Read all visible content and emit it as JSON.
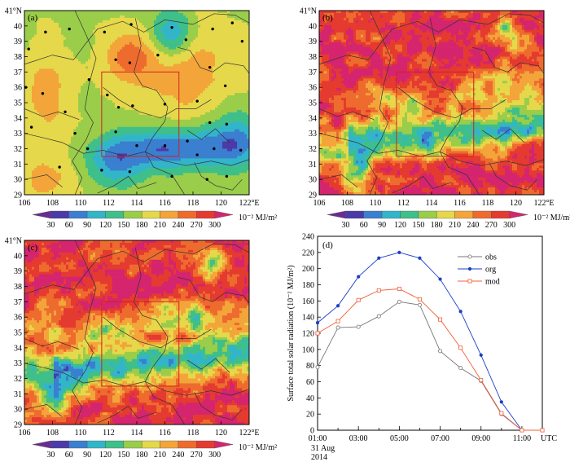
{
  "figure": {
    "panels": [
      {
        "label": "(a)",
        "lat_ticks": [
          "29",
          "30",
          "31",
          "32",
          "33",
          "34",
          "35",
          "36",
          "37",
          "38",
          "39",
          "40",
          "41°N"
        ],
        "lon_ticks": [
          "106",
          "108",
          "110",
          "112",
          "114",
          "116",
          "118",
          "120",
          "122°E"
        ]
      },
      {
        "label": "(b)",
        "lat_ticks": [
          "29",
          "30",
          "31",
          "32",
          "33",
          "34",
          "35",
          "36",
          "37",
          "38",
          "39",
          "40",
          "41°N"
        ],
        "lon_ticks": [
          "106",
          "108",
          "110",
          "112",
          "114",
          "116",
          "118",
          "120",
          "122°E"
        ]
      },
      {
        "label": "(c)",
        "lat_ticks": [
          "29",
          "30",
          "31",
          "32",
          "33",
          "34",
          "35",
          "36",
          "37",
          "38",
          "39",
          "40",
          "41°N"
        ],
        "lon_ticks": [
          "106",
          "108",
          "110",
          "112",
          "114",
          "116",
          "118",
          "120",
          "122°E"
        ]
      }
    ],
    "colorbar": {
      "levels": [
        "30",
        "60",
        "90",
        "120",
        "150",
        "180",
        "210",
        "240",
        "270",
        "300"
      ],
      "unit": "10⁻² MJ/m²",
      "colors": [
        "#6a2c8f",
        "#4b3aa8",
        "#3a7fd0",
        "#33b5c9",
        "#3fbf8a",
        "#9acd4a",
        "#e5d84a",
        "#f3a53a",
        "#ee6b2e",
        "#e53a30",
        "#d4256e"
      ]
    },
    "colors": {
      "obs": "#777777",
      "org": "#1a3fc8",
      "mod": "#f0603a",
      "region_box": "#d42020",
      "station": "#000000"
    }
  },
  "chart_data": [
    {
      "type": "heatmap",
      "title": "(a)",
      "x_ticks": [
        "106",
        "108",
        "110",
        "112",
        "114",
        "116",
        "118",
        "120",
        "122°E"
      ],
      "y_ticks": [
        "29",
        "30",
        "31",
        "32",
        "33",
        "34",
        "35",
        "36",
        "37",
        "38",
        "39",
        "40",
        "41°N"
      ],
      "xlim": [
        106,
        122
      ],
      "ylim": [
        29,
        41
      ],
      "colorbar_levels": [
        30,
        60,
        90,
        120,
        150,
        180,
        210,
        240,
        270,
        300
      ],
      "colorbar_unit": "10⁻² MJ/m²",
      "region_box": {
        "lon": [
          111.5,
          117
        ],
        "lat": [
          31.5,
          37
        ]
      }
    },
    {
      "type": "heatmap",
      "title": "(b)",
      "x_ticks": [
        "106",
        "108",
        "110",
        "112",
        "114",
        "116",
        "118",
        "120",
        "122°E"
      ],
      "y_ticks": [
        "29",
        "30",
        "31",
        "32",
        "33",
        "34",
        "35",
        "36",
        "37",
        "38",
        "39",
        "40",
        "41°N"
      ],
      "xlim": [
        106,
        122
      ],
      "ylim": [
        29,
        41
      ],
      "colorbar_levels": [
        30,
        60,
        90,
        120,
        150,
        180,
        210,
        240,
        270,
        300
      ],
      "colorbar_unit": "10⁻² MJ/m²",
      "region_box": {
        "lon": [
          111.5,
          117
        ],
        "lat": [
          31.5,
          37
        ]
      }
    },
    {
      "type": "heatmap",
      "title": "(c)",
      "x_ticks": [
        "106",
        "108",
        "110",
        "112",
        "114",
        "116",
        "118",
        "120",
        "122°E"
      ],
      "y_ticks": [
        "29",
        "30",
        "31",
        "32",
        "33",
        "34",
        "35",
        "36",
        "37",
        "38",
        "39",
        "40",
        "41°N"
      ],
      "xlim": [
        106,
        122
      ],
      "ylim": [
        29,
        41
      ],
      "colorbar_levels": [
        30,
        60,
        90,
        120,
        150,
        180,
        210,
        240,
        270,
        300
      ],
      "colorbar_unit": "10⁻² MJ/m²",
      "region_box": {
        "lon": [
          111.5,
          117
        ],
        "lat": [
          31.5,
          37
        ]
      }
    },
    {
      "type": "line",
      "title": "(d)",
      "x": [
        "01:00",
        "02:00",
        "03:00",
        "04:00",
        "05:00",
        "06:00",
        "07:00",
        "08:00",
        "09:00",
        "10:00",
        "11:00",
        "12:00"
      ],
      "x_tick_labels": [
        "01:00",
        "03:00",
        "05:00",
        "07:00",
        "09:00",
        "11:00",
        "UTC"
      ],
      "x_date_label": [
        "31 Aug",
        "2014"
      ],
      "ylabel": "Surface total solar radiation (10⁻² MJ/m²)",
      "ylim": [
        0,
        240
      ],
      "y_ticks": [
        0,
        20,
        40,
        60,
        80,
        100,
        120,
        140,
        160,
        180,
        200,
        220,
        240
      ],
      "grid": false,
      "legend_position": "top-right",
      "series": [
        {
          "name": "obs",
          "values": [
            78,
            127,
            128,
            141,
            159,
            155,
            98,
            77,
            61,
            20,
            0,
            0
          ]
        },
        {
          "name": "org",
          "values": [
            133,
            154,
            190,
            213,
            220,
            213,
            187,
            147,
            93,
            35,
            0,
            0
          ]
        },
        {
          "name": "mod",
          "values": [
            120,
            135,
            161,
            173,
            175,
            162,
            137,
            102,
            62,
            21,
            0,
            0
          ]
        }
      ]
    }
  ]
}
